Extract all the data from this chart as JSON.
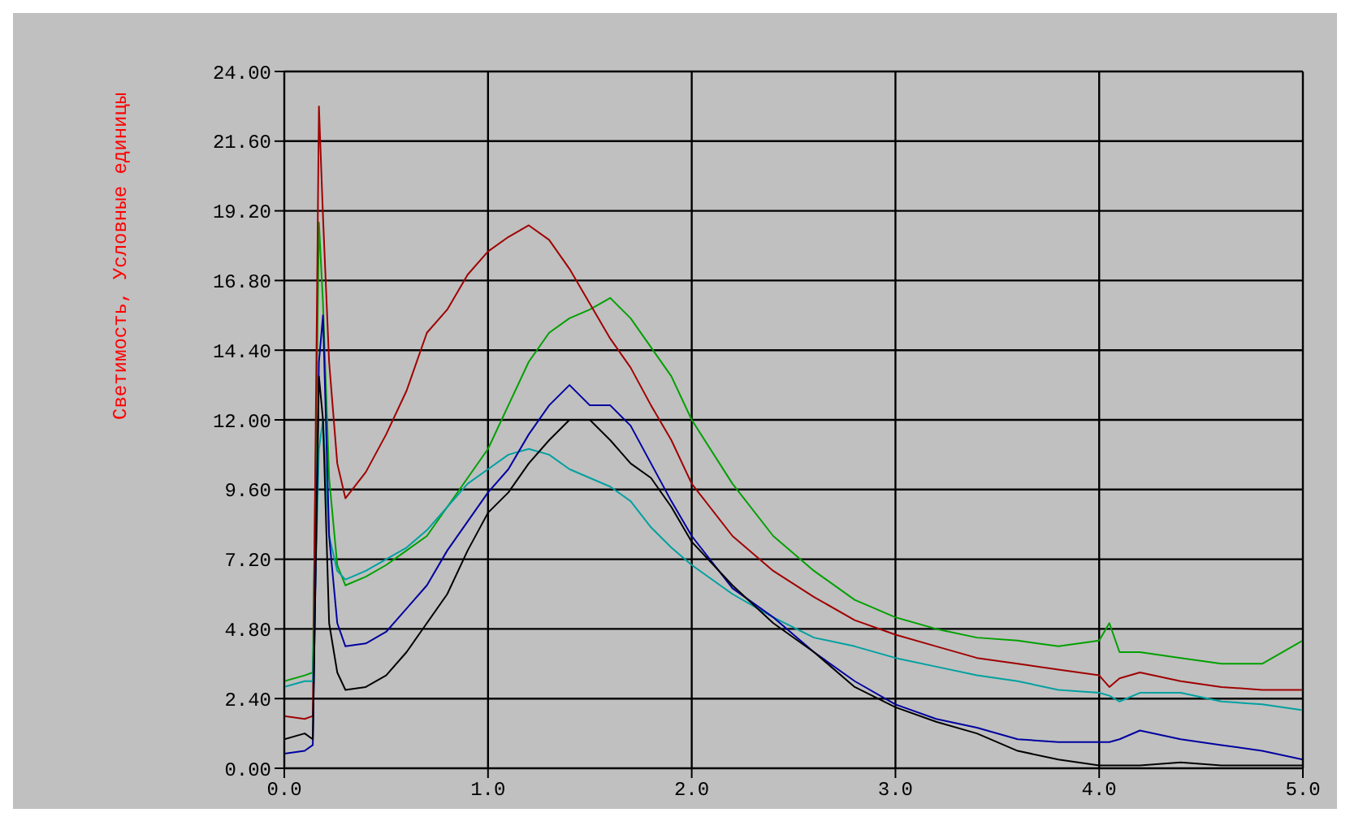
{
  "chart_data": {
    "type": "line",
    "ylabel": "Светимость, Условные единицы",
    "x": [
      0,
      0.1,
      0.14,
      0.17,
      0.19,
      0.22,
      0.26,
      0.3,
      0.4,
      0.5,
      0.6,
      0.7,
      0.8,
      0.9,
      1.0,
      1.1,
      1.2,
      1.3,
      1.4,
      1.5,
      1.6,
      1.7,
      1.8,
      1.9,
      2.0,
      2.2,
      2.4,
      2.6,
      2.8,
      3.0,
      3.2,
      3.4,
      3.6,
      3.8,
      4.0,
      4.05,
      4.1,
      4.2,
      4.4,
      4.6,
      4.8,
      5.0
    ],
    "series": [
      {
        "color": "#00a000",
        "values": [
          3.0,
          3.2,
          3.3,
          18.8,
          16,
          10,
          7,
          6.3,
          6.6,
          7.0,
          7.5,
          8.0,
          9.0,
          10.0,
          11.0,
          12.5,
          14,
          15,
          15.5,
          15.8,
          16.2,
          15.5,
          14.5,
          13.5,
          12,
          9.8,
          8,
          6.8,
          5.8,
          5.2,
          4.8,
          4.5,
          4.4,
          4.2,
          4.4,
          5.0,
          4.0,
          4.0,
          3.8,
          3.6,
          3.6,
          4.4
        ]
      },
      {
        "color": "#a00000",
        "values": [
          1.8,
          1.7,
          1.8,
          22.8,
          19,
          14,
          10.5,
          9.3,
          10.2,
          11.5,
          13,
          15,
          15.8,
          17,
          17.8,
          18.3,
          18.7,
          18.2,
          17.2,
          16,
          14.8,
          13.8,
          12.5,
          11.3,
          9.8,
          8,
          6.8,
          5.9,
          5.1,
          4.6,
          4.2,
          3.8,
          3.6,
          3.4,
          3.2,
          2.8,
          3.1,
          3.3,
          3.0,
          2.8,
          2.7,
          2.7
        ]
      },
      {
        "color": "#00a0a0",
        "values": [
          2.8,
          3.0,
          3.0,
          11,
          12,
          8,
          6.8,
          6.5,
          6.8,
          7.2,
          7.6,
          8.2,
          9.0,
          9.8,
          10.3,
          10.8,
          11,
          10.8,
          10.3,
          10,
          9.7,
          9.2,
          8.3,
          7.6,
          7.0,
          6.0,
          5.2,
          4.5,
          4.2,
          3.8,
          3.5,
          3.2,
          3.0,
          2.7,
          2.6,
          2.5,
          2.3,
          2.6,
          2.6,
          2.3,
          2.2,
          2.0
        ]
      },
      {
        "color": "#0000a0",
        "values": [
          0.5,
          0.6,
          0.8,
          14,
          15.6,
          8,
          5,
          4.2,
          4.3,
          4.7,
          5.5,
          6.3,
          7.5,
          8.5,
          9.5,
          10.3,
          11.5,
          12.5,
          13.2,
          12.5,
          12.5,
          11.8,
          10.5,
          9.2,
          8,
          6.2,
          5.2,
          4.0,
          3.0,
          2.2,
          1.7,
          1.4,
          1.0,
          0.9,
          0.9,
          0.9,
          1.0,
          1.3,
          1.0,
          0.8,
          0.6,
          0.3
        ]
      },
      {
        "color": "#000000",
        "values": [
          1.0,
          1.2,
          1.0,
          13.5,
          12,
          5,
          3.3,
          2.7,
          2.8,
          3.2,
          4.0,
          5.0,
          6.0,
          7.5,
          8.8,
          9.5,
          10.5,
          11.3,
          12.0,
          12.0,
          11.3,
          10.5,
          10,
          9,
          7.8,
          6.3,
          5.0,
          4.0,
          2.8,
          2.1,
          1.6,
          1.2,
          0.6,
          0.3,
          0.1,
          0.1,
          0.1,
          0.1,
          0.2,
          0.1,
          0.1,
          0.1
        ]
      }
    ],
    "xlim": [
      0,
      5
    ],
    "xticks": [
      {
        "value": 0,
        "label": "0.0"
      },
      {
        "value": 1,
        "label": "1.0"
      },
      {
        "value": 2,
        "label": "2.0"
      },
      {
        "value": 3,
        "label": "3.0"
      },
      {
        "value": 4,
        "label": "4.0"
      },
      {
        "value": 5,
        "label": "5.0"
      }
    ],
    "ylim": [
      0,
      24
    ],
    "yticks": [
      {
        "value": 0,
        "label": "0.00"
      },
      {
        "value": 2.4,
        "label": "2.40"
      },
      {
        "value": 4.8,
        "label": "4.80"
      },
      {
        "value": 7.2,
        "label": "7.20"
      },
      {
        "value": 9.6,
        "label": "9.60"
      },
      {
        "value": 12,
        "label": "12.00"
      },
      {
        "value": 14.4,
        "label": "14.40"
      },
      {
        "value": 16.8,
        "label": "16.80"
      },
      {
        "value": 19.2,
        "label": "19.20"
      },
      {
        "value": 21.6,
        "label": "21.60"
      },
      {
        "value": 24,
        "label": "24.00"
      }
    ],
    "grid": true,
    "marker": "none",
    "line_style": "solid"
  }
}
